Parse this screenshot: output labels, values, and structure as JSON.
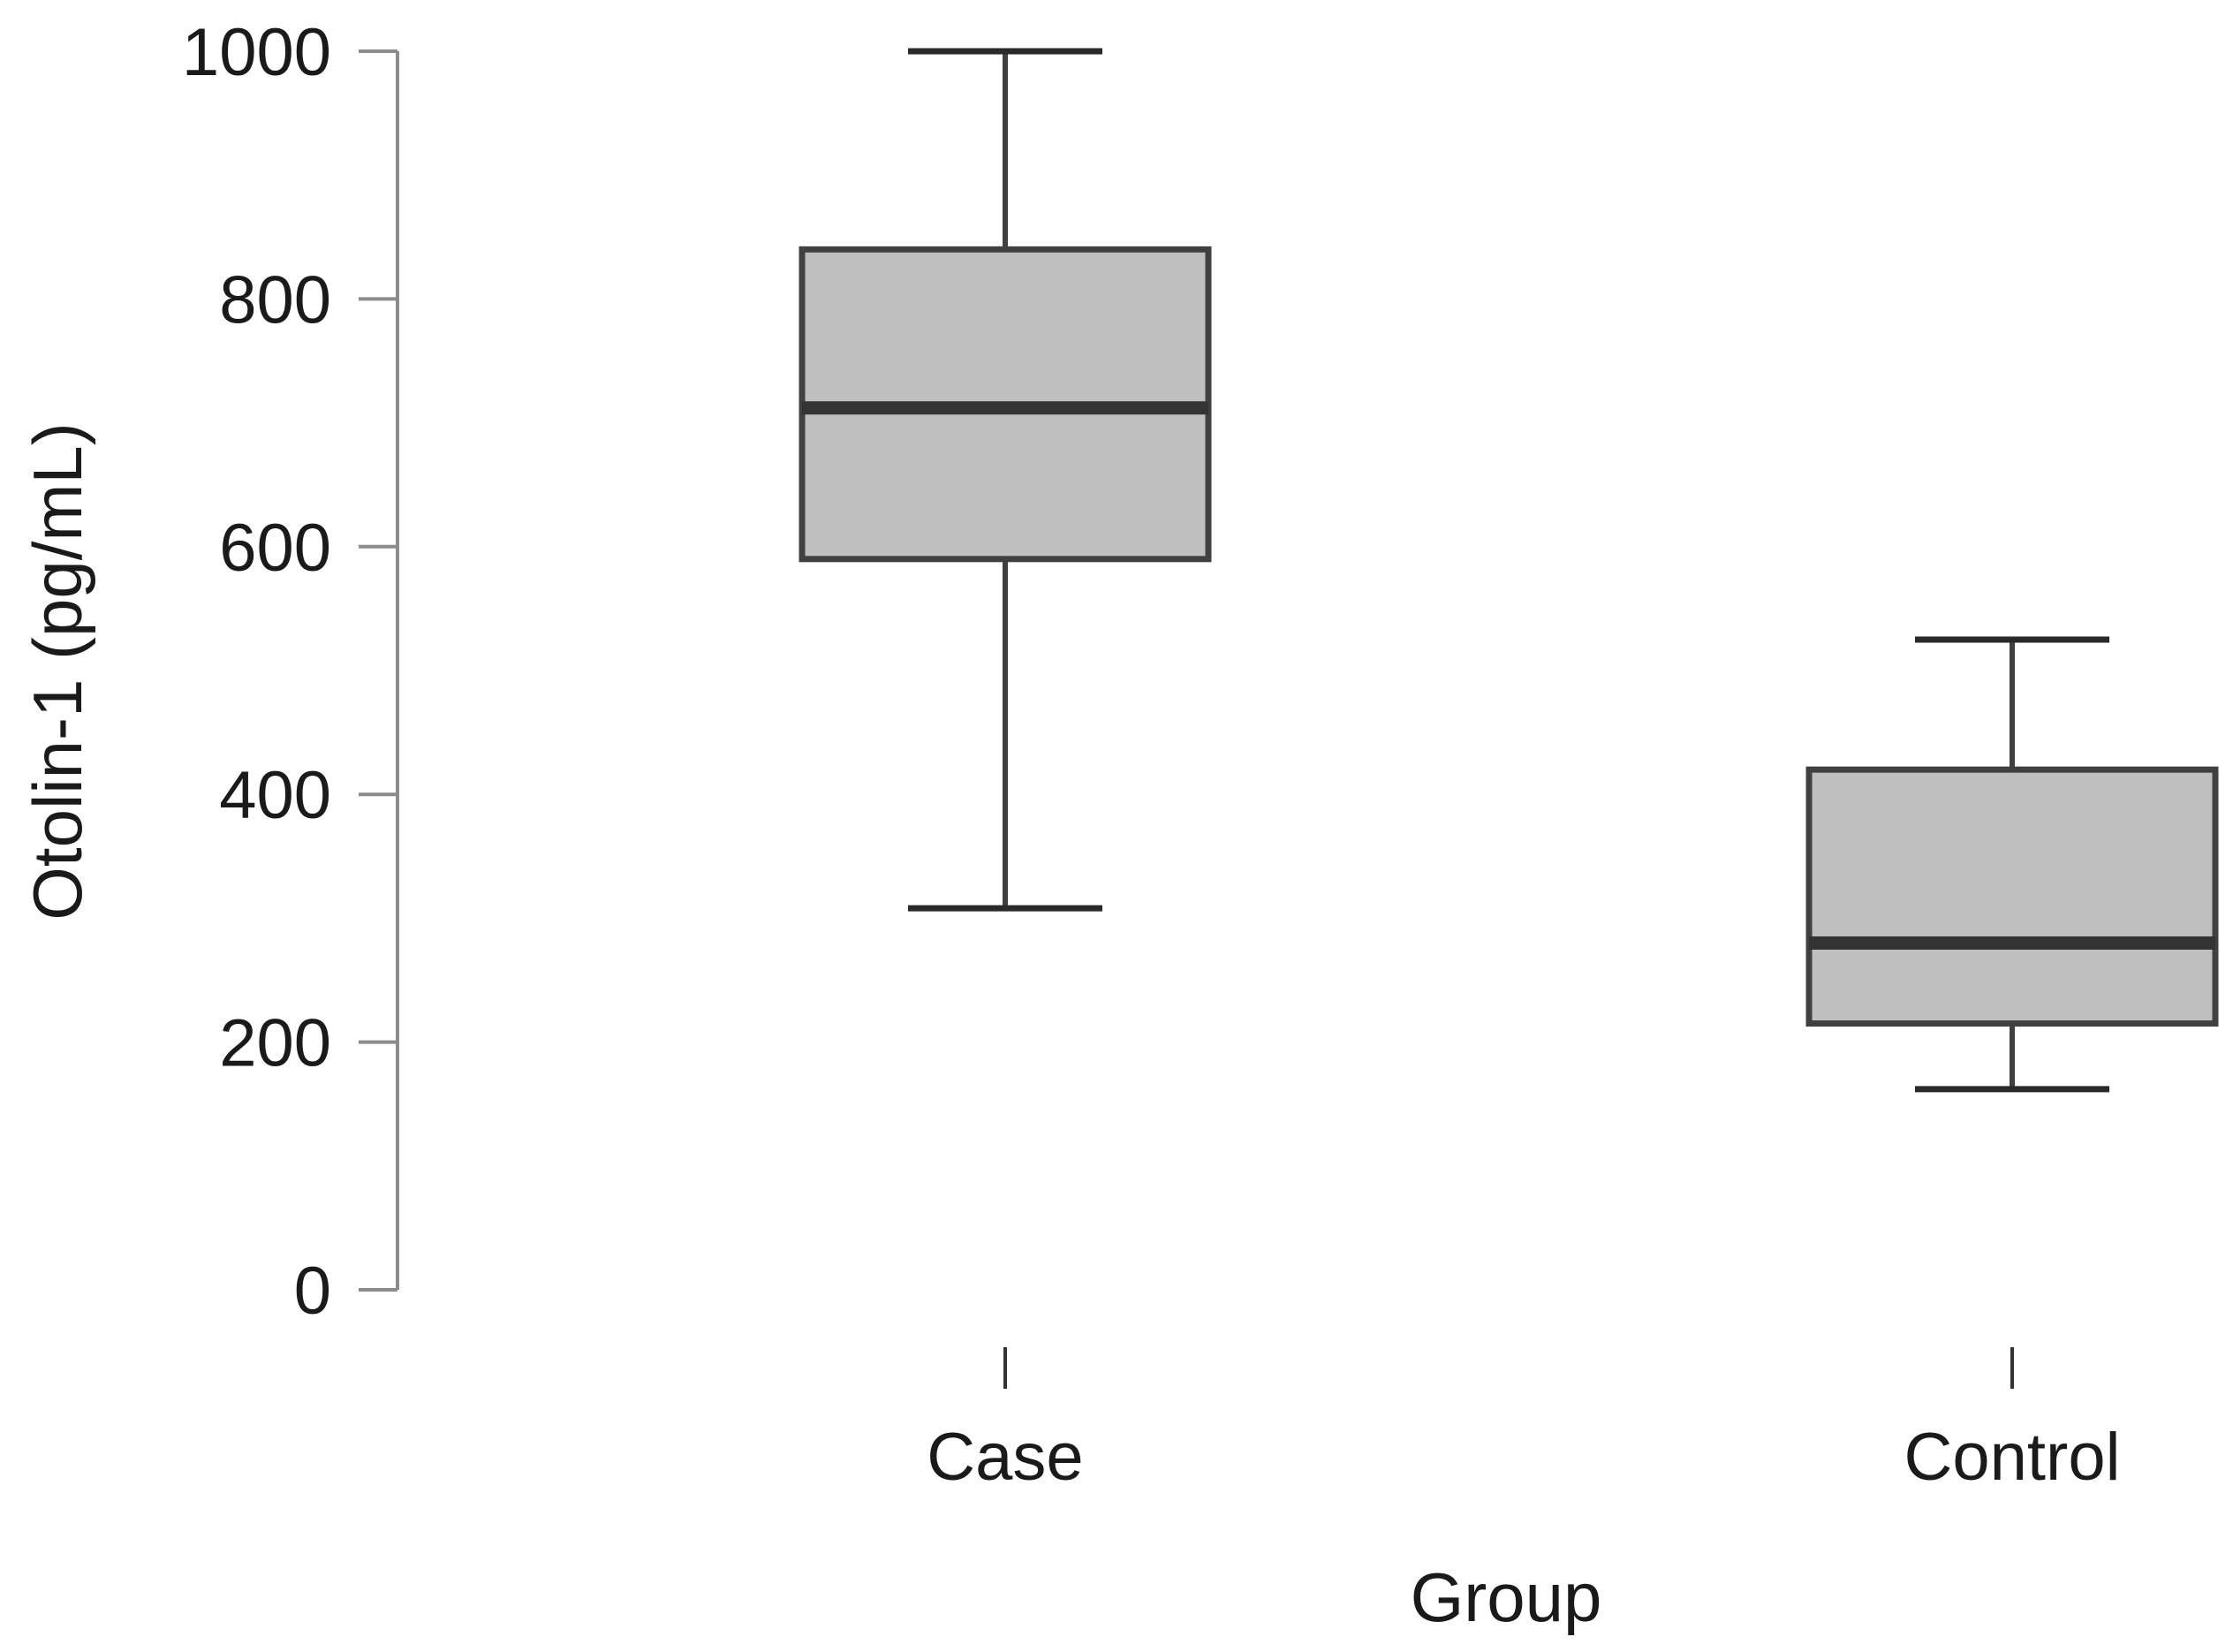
{
  "chart_data": {
    "type": "boxplot",
    "title": "",
    "xlabel": "Group",
    "ylabel": "Otolin-1 (pg/mL)",
    "ylim": [
      0,
      1000
    ],
    "yticks": [
      0,
      200,
      400,
      600,
      800,
      1000
    ],
    "grid": false,
    "categories": [
      "Case",
      "Control"
    ],
    "boxes": [
      {
        "category": "Case",
        "whisker_low": 308,
        "q1": 590,
        "median": 712,
        "q3": 840,
        "whisker_high": 1000
      },
      {
        "category": "Control",
        "whisker_low": 162,
        "q1": 215,
        "median": 280,
        "q3": 420,
        "whisker_high": 525
      }
    ],
    "colors": {
      "box_fill": "#bfbfbf",
      "box_stroke": "#404040",
      "median": "#333333",
      "axis": "#8c8c8c"
    }
  }
}
